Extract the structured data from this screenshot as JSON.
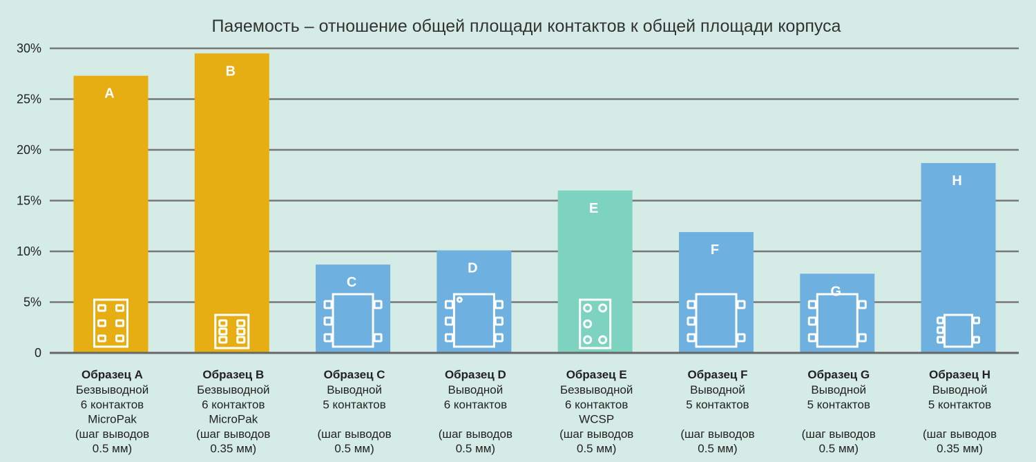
{
  "chart_data": {
    "type": "bar",
    "title": "Паяемость – отношение общей площади контактов к общей площади корпуса",
    "xlabel": "",
    "ylabel": "",
    "ylim": [
      0,
      30
    ],
    "yticks": [
      {
        "value": 0,
        "label": "0"
      },
      {
        "value": 5,
        "label": "5%"
      },
      {
        "value": 10,
        "label": "10%"
      },
      {
        "value": 15,
        "label": "15%"
      },
      {
        "value": 20,
        "label": "20%"
      },
      {
        "value": 25,
        "label": "25%"
      },
      {
        "value": 30,
        "label": "30%"
      }
    ],
    "grid": true,
    "colors": {
      "leadless_micropak": "#e6ae13",
      "leaded": "#6eb0df",
      "wcsp": "#7dd3c0"
    },
    "categories": [
      {
        "letter": "A",
        "name": "Образец A",
        "lines": [
          "Безвыводной",
          "6 контактов",
          "MicroPak",
          "(шаг выводов",
          "0.5 мм)"
        ],
        "value": 27.3,
        "color": "#e6ae13",
        "icon": "micropak-6-icon"
      },
      {
        "letter": "B",
        "name": "Образец B",
        "lines": [
          "Безвыводной",
          "6 контактов",
          "MicroPak",
          "(шаг выводов",
          "0.35 мм)"
        ],
        "value": 29.5,
        "color": "#e6ae13",
        "icon": "micropak-6-small-icon"
      },
      {
        "letter": "C",
        "name": "Образец C",
        "lines": [
          "Выводной",
          "5 контактов",
          "",
          "(шаг выводов",
          "0.5 мм)"
        ],
        "value": 8.7,
        "color": "#6eb0df",
        "icon": "leaded-5-icon"
      },
      {
        "letter": "D",
        "name": "Образец D",
        "lines": [
          "Выводной",
          "6 контактов",
          "",
          "(шаг выводов",
          "0.5 мм)"
        ],
        "value": 10.1,
        "color": "#6eb0df",
        "icon": "leaded-6-icon"
      },
      {
        "letter": "E",
        "name": "Образец E",
        "lines": [
          "Безвыводной",
          "6 контактов",
          "WCSP",
          "(шаг выводов",
          "0.5 мм)"
        ],
        "value": 16.0,
        "color": "#7dd3c0",
        "icon": "wcsp-6-icon"
      },
      {
        "letter": "F",
        "name": "Образец F",
        "lines": [
          "Выводной",
          "5 контактов",
          "",
          "(шаг выводов",
          "0.5 мм)"
        ],
        "value": 11.9,
        "color": "#6eb0df",
        "icon": "leaded-5-icon"
      },
      {
        "letter": "G",
        "name": "Образец G",
        "lines": [
          "Выводной",
          "5 контактов",
          "",
          "(шаг выводов",
          "0.5 мм)"
        ],
        "value": 7.8,
        "color": "#6eb0df",
        "icon": "leaded-5-icon"
      },
      {
        "letter": "H",
        "name": "Образец H",
        "lines": [
          "Выводной",
          "5 контактов",
          "",
          "(шаг выводов",
          "0.35 мм)"
        ],
        "value": 18.7,
        "color": "#6eb0df",
        "icon": "leaded-5-small-icon"
      }
    ]
  }
}
